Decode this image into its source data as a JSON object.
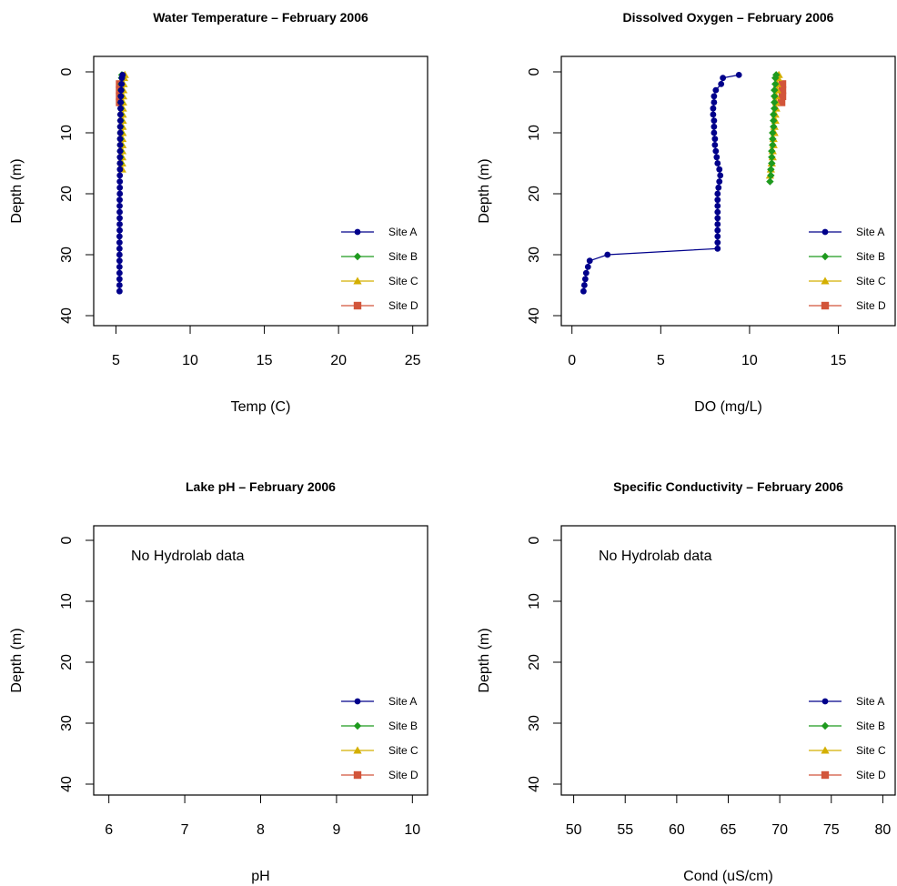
{
  "colors": {
    "Site A": "#00008B",
    "Site B": "#1E9A1E",
    "Site C": "#D4AF00",
    "Site D": "#D2553A"
  },
  "markers": {
    "Site A": "circle",
    "Site B": "diamond",
    "Site C": "triangle",
    "Site D": "square"
  },
  "chart_data": [
    {
      "type": "line",
      "title": "Water Temperature – February 2006",
      "xlabel": "Temp (C)",
      "ylabel": "Depth (m)",
      "xlim": [
        3.5,
        26.0
      ],
      "ylim": [
        0,
        40
      ],
      "y_inverted": true,
      "xticks": [
        5,
        10,
        15,
        20,
        25
      ],
      "yticks": [
        0,
        10,
        20,
        30,
        40
      ],
      "legend": [
        "Site A",
        "Site B",
        "Site C",
        "Site D"
      ],
      "legend_position": "bottom-right",
      "annotation": "",
      "series": [
        {
          "name": "Site A",
          "x": [
            5.45,
            5.4,
            5.38,
            5.35,
            5.33,
            5.32,
            5.31,
            5.3,
            5.3,
            5.29,
            5.29,
            5.28,
            5.28,
            5.28,
            5.27,
            5.27,
            5.27,
            5.26,
            5.26,
            5.26,
            5.26,
            5.25,
            5.25,
            5.25,
            5.25,
            5.25,
            5.25,
            5.24,
            5.24,
            5.24,
            5.24,
            5.24,
            5.24,
            5.24,
            5.24,
            5.24,
            5.24
          ],
          "y": [
            0.5,
            1,
            2,
            3,
            4,
            5,
            6,
            7,
            8,
            9,
            10,
            11,
            12,
            13,
            14,
            15,
            16,
            17,
            18,
            19,
            20,
            21,
            22,
            23,
            24,
            25,
            26,
            27,
            28,
            29,
            30,
            31,
            32,
            33,
            34,
            35,
            36
          ]
        },
        {
          "name": "Site B",
          "x": [
            5.4,
            5.38,
            5.36,
            5.35,
            5.34,
            5.33,
            5.33,
            5.32,
            5.32,
            5.31,
            5.31,
            5.31,
            5.3,
            5.3,
            5.3,
            5.3
          ],
          "y": [
            0.5,
            1,
            2,
            3,
            4,
            5,
            6,
            7,
            8,
            9,
            10,
            11,
            12,
            13,
            14,
            15
          ]
        },
        {
          "name": "Site C",
          "x": [
            5.6,
            5.55,
            5.52,
            5.5,
            5.49,
            5.48,
            5.47,
            5.46,
            5.46,
            5.45,
            5.45,
            5.44,
            5.44,
            5.43,
            5.43,
            5.42,
            5.42
          ],
          "y": [
            0.5,
            1,
            2,
            3,
            4,
            5,
            6,
            7,
            8,
            9,
            10,
            11,
            12,
            13,
            14,
            15,
            16
          ]
        },
        {
          "name": "Site D",
          "x": [
            5.25,
            5.25,
            5.25,
            5.25
          ],
          "y": [
            2,
            3,
            4,
            5
          ]
        }
      ]
    },
    {
      "type": "line",
      "title": "Dissolved Oxygen – February 2006",
      "xlabel": "DO (mg/L)",
      "ylabel": "Depth (m)",
      "xlim": [
        -0.6,
        18.2
      ],
      "ylim": [
        0,
        40
      ],
      "y_inverted": true,
      "xticks": [
        0,
        5,
        10,
        15
      ],
      "yticks": [
        0,
        10,
        20,
        30,
        40
      ],
      "legend": [
        "Site A",
        "Site B",
        "Site C",
        "Site D"
      ],
      "legend_position": "bottom-right",
      "annotation": "",
      "series": [
        {
          "name": "Site A",
          "x": [
            9.4,
            8.5,
            8.4,
            8.1,
            8.0,
            8.0,
            7.95,
            7.95,
            8.0,
            8.0,
            8.0,
            8.05,
            8.05,
            8.1,
            8.15,
            8.2,
            8.3,
            8.35,
            8.3,
            8.25,
            8.2,
            8.2,
            8.2,
            8.2,
            8.2,
            8.2,
            8.2,
            8.2,
            8.2,
            8.2,
            2.0,
            1.0,
            0.9,
            0.8,
            0.75,
            0.7,
            0.65
          ],
          "y": [
            0.5,
            1,
            2,
            3,
            4,
            5,
            6,
            7,
            8,
            9,
            10,
            11,
            12,
            13,
            14,
            15,
            16,
            17,
            18,
            19,
            20,
            21,
            22,
            23,
            24,
            25,
            26,
            27,
            28,
            29,
            30,
            31,
            32,
            33,
            34,
            35,
            36
          ]
        },
        {
          "name": "Site B",
          "x": [
            11.5,
            11.45,
            11.45,
            11.4,
            11.4,
            11.4,
            11.4,
            11.35,
            11.35,
            11.35,
            11.3,
            11.3,
            11.3,
            11.25,
            11.25,
            11.25,
            11.2,
            11.2,
            11.15
          ],
          "y": [
            0.5,
            1,
            2,
            3,
            4,
            5,
            6,
            7,
            8,
            9,
            10,
            11,
            12,
            13,
            14,
            15,
            16,
            17,
            18
          ]
        },
        {
          "name": "Site C",
          "x": [
            11.65,
            11.6,
            11.55,
            11.55,
            11.5,
            11.5,
            11.5,
            11.45,
            11.45,
            11.4,
            11.4,
            11.35,
            11.35,
            11.3,
            11.3,
            11.25,
            11.2,
            11.15
          ],
          "y": [
            0.5,
            1,
            2,
            3,
            4,
            5,
            6,
            7,
            8,
            9,
            10,
            11,
            12,
            13,
            14,
            15,
            16,
            17
          ]
        },
        {
          "name": "Site D",
          "x": [
            11.85,
            11.85,
            11.85,
            11.8
          ],
          "y": [
            2,
            3,
            4,
            5
          ]
        }
      ]
    },
    {
      "type": "line",
      "title": "Lake pH – February 2006",
      "xlabel": "pH",
      "ylabel": "Depth (m)",
      "xlim": [
        5.8,
        10.2
      ],
      "ylim": [
        0,
        40
      ],
      "y_inverted": true,
      "xticks": [
        6,
        7,
        8,
        9,
        10
      ],
      "yticks": [
        0,
        10,
        20,
        30,
        40
      ],
      "legend": [
        "Site A",
        "Site B",
        "Site C",
        "Site D"
      ],
      "legend_position": "bottom-right",
      "annotation": "No Hydrolab data",
      "series": [
        {
          "name": "Site A",
          "x": [],
          "y": []
        },
        {
          "name": "Site B",
          "x": [],
          "y": []
        },
        {
          "name": "Site C",
          "x": [],
          "y": []
        },
        {
          "name": "Site D",
          "x": [],
          "y": []
        }
      ]
    },
    {
      "type": "line",
      "title": "Specific Conductivity – February 2006",
      "xlabel": "Cond (uS/cm)",
      "ylabel": "Depth (m)",
      "xlim": [
        48.8,
        81.2
      ],
      "ylim": [
        0,
        40
      ],
      "y_inverted": true,
      "xticks": [
        50,
        55,
        60,
        65,
        70,
        75,
        80
      ],
      "yticks": [
        0,
        10,
        20,
        30,
        40
      ],
      "legend": [
        "Site A",
        "Site B",
        "Site C",
        "Site D"
      ],
      "legend_position": "bottom-right",
      "annotation": "No Hydrolab data",
      "series": [
        {
          "name": "Site A",
          "x": [],
          "y": []
        },
        {
          "name": "Site B",
          "x": [],
          "y": []
        },
        {
          "name": "Site C",
          "x": [],
          "y": []
        },
        {
          "name": "Site D",
          "x": [],
          "y": []
        }
      ]
    }
  ]
}
